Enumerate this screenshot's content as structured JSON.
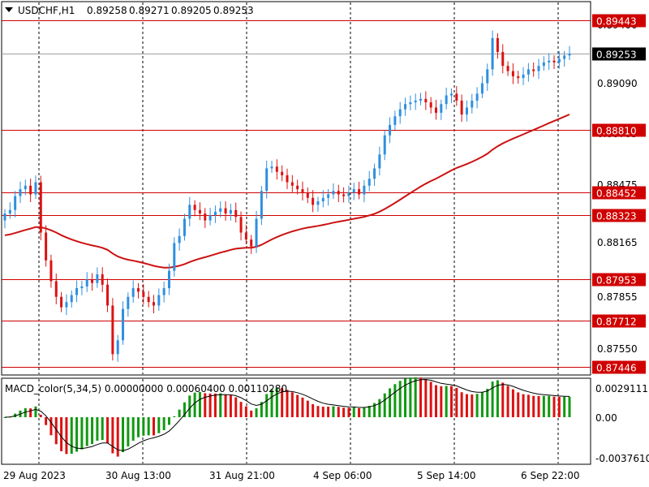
{
  "header": {
    "symbol_tf": "USDCHF,H1",
    "ohlc": [
      "0.89258",
      "0.89271",
      "0.89205",
      "0.89253"
    ]
  },
  "price_axis": {
    "ticks": [
      "0.89400",
      "0.89090",
      "0.88785",
      "0.88475",
      "0.88165",
      "0.87855",
      "0.87550"
    ],
    "current_price": "0.89253",
    "current_price_value": 0.89253
  },
  "levels": [
    {
      "label": "0.89443",
      "value": 0.89443
    },
    {
      "label": "0.88810",
      "value": 0.8881
    },
    {
      "label": "0.88452",
      "value": 0.88452
    },
    {
      "label": "0.88323",
      "value": 0.88323
    },
    {
      "label": "0.87953",
      "value": 0.87953
    },
    {
      "label": "0.87712",
      "value": 0.87712
    },
    {
      "label": "0.87446",
      "value": 0.87446
    }
  ],
  "time_axis": {
    "labels": [
      "29 Aug 2023",
      "30 Aug 13:00",
      "31 Aug 21:00",
      "4 Sep 06:00",
      "5 Sep 14:00",
      "6 Sep 22:00"
    ]
  },
  "macd": {
    "title": "MACD_color(5,34,5) 0.00000000 0.00060400 0.00110280",
    "axis_ticks": [
      "0.0029111",
      "0.00",
      "-0.0037610"
    ],
    "ylim": [
      -0.004,
      0.0033
    ]
  },
  "colors": {
    "up": "#2e8fe0",
    "down": "#dd1111",
    "level": "#d00000",
    "ma": "#cc1111",
    "hist_pos": "#119911",
    "hist_neg": "#dd1111",
    "grid": "#000000"
  },
  "chart_data": {
    "type": "candlestick",
    "title": "USDCHF,H1",
    "ylim": [
      0.874,
      0.8955
    ],
    "closes": [
      0.8833,
      0.8835,
      0.8843,
      0.8847,
      0.8849,
      0.8844,
      0.8851,
      0.8822,
      0.8806,
      0.8794,
      0.8785,
      0.8779,
      0.8782,
      0.8786,
      0.879,
      0.8791,
      0.8795,
      0.8793,
      0.8798,
      0.8792,
      0.878,
      0.8752,
      0.876,
      0.8778,
      0.8785,
      0.879,
      0.8788,
      0.8785,
      0.8782,
      0.878,
      0.8786,
      0.879,
      0.88,
      0.8816,
      0.882,
      0.883,
      0.8838,
      0.8835,
      0.8833,
      0.8829,
      0.8832,
      0.8834,
      0.8836,
      0.8833,
      0.8835,
      0.8831,
      0.8822,
      0.8818,
      0.8814,
      0.883,
      0.8846,
      0.8859,
      0.886,
      0.8857,
      0.8855,
      0.8851,
      0.8849,
      0.8847,
      0.8845,
      0.8842,
      0.8838,
      0.884,
      0.8842,
      0.8844,
      0.8846,
      0.8844,
      0.8843,
      0.8845,
      0.8847,
      0.8844,
      0.8849,
      0.8853,
      0.8859,
      0.8867,
      0.8878,
      0.8884,
      0.8889,
      0.8893,
      0.8896,
      0.8897,
      0.8898,
      0.8899,
      0.8897,
      0.8894,
      0.8891,
      0.8896,
      0.8901,
      0.8902,
      0.8898,
      0.889,
      0.8894,
      0.8898,
      0.8902,
      0.8908,
      0.8916,
      0.8934,
      0.8926,
      0.8918,
      0.8915,
      0.8912,
      0.8911,
      0.8913,
      0.8916,
      0.8915,
      0.8918,
      0.892,
      0.8921,
      0.892,
      0.8922,
      0.8924,
      0.8925
    ]
  }
}
